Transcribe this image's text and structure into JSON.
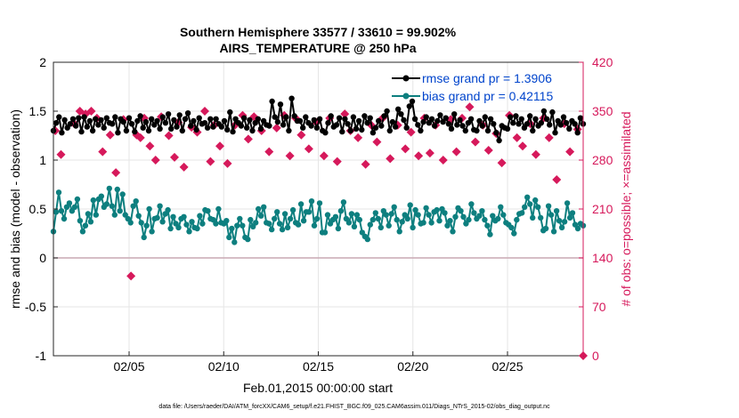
{
  "chart_data": {
    "type": "line",
    "title": [
      "Southern Hemisphere 33577 / 33610 = 99.902%",
      "AIRS_TEMPERATURE @ 250 hPa"
    ],
    "xlabel": "Feb.01,2015 00:00:00 start",
    "ylabel_left": "rmse and bias (model - observation)",
    "ylabel_right": "# of obs: o=possible; ×=assimilated",
    "footer": "data file: /Users/raeder/DAI/ATM_forcXX/CAM6_setup/f.e21.FHIST_BGC.f09_025.CAM6assim.011/Diags_NTrS_2015-02/obs_diag_output.nc",
    "xlim": [
      1,
      29
    ],
    "x_ticks": [
      5,
      10,
      15,
      20,
      25
    ],
    "x_tick_labels": [
      "02/05",
      "02/10",
      "02/15",
      "02/20",
      "02/25"
    ],
    "ylim_left": [
      -1,
      2
    ],
    "y_ticks_left": [
      "-1",
      "-0.5",
      "0",
      "0.5",
      "1",
      "1.5",
      "2"
    ],
    "ylim_right": [
      0,
      420
    ],
    "y_ticks_right": [
      "0",
      "70",
      "140",
      "210",
      "280",
      "350",
      "420"
    ],
    "grid": true,
    "legend_position": "top-right",
    "colors": {
      "rmse": "#000000",
      "bias": "#0d7f7f",
      "obs": "#d6195b",
      "zero_line": "#c9a9b3",
      "legend_text": "#0044cc"
    },
    "series": [
      {
        "name": "rmse grand pr = 1.3906",
        "axis": "left",
        "values": [
          1.3,
          1.38,
          1.44,
          1.28,
          1.41,
          1.33,
          1.37,
          1.42,
          1.35,
          1.43,
          1.29,
          1.44,
          1.34,
          1.4,
          1.3,
          1.42,
          1.36,
          1.41,
          1.33,
          1.43,
          1.38,
          1.37,
          1.44,
          1.28,
          1.42,
          1.39,
          1.3,
          1.43,
          1.37,
          1.29,
          1.4,
          1.45,
          1.33,
          1.39,
          1.3,
          1.42,
          1.36,
          1.4,
          1.32,
          1.44,
          1.38,
          1.47,
          1.32,
          1.41,
          1.34,
          1.46,
          1.3,
          1.42,
          1.48,
          1.35,
          1.4,
          1.31,
          1.43,
          1.37,
          1.38,
          1.33,
          1.42,
          1.34,
          1.42,
          1.37,
          1.34,
          1.4,
          1.31,
          1.49,
          1.29,
          1.42,
          1.38,
          1.35,
          1.43,
          1.33,
          1.41,
          1.3,
          1.38,
          1.42,
          1.32,
          1.4,
          1.36,
          1.35,
          1.6,
          1.44,
          1.39,
          1.57,
          1.36,
          1.44,
          1.3,
          1.63,
          1.45,
          1.4,
          1.4,
          1.33,
          1.44,
          1.38,
          1.35,
          1.41,
          1.33,
          1.42,
          1.3,
          1.28,
          1.38,
          1.45,
          1.34,
          1.36,
          1.43,
          1.29,
          1.42,
          1.37,
          1.3,
          1.44,
          1.32,
          1.4,
          1.31,
          1.45,
          1.38,
          1.43,
          1.28,
          1.33,
          1.4,
          1.35,
          1.45,
          1.5,
          1.3,
          1.39,
          1.34,
          1.52,
          1.47,
          1.41,
          1.33,
          1.55,
          1.6,
          1.42,
          1.36,
          1.3,
          1.39,
          1.44,
          1.38,
          1.42,
          1.35,
          1.4,
          1.46,
          1.39,
          1.43,
          1.37,
          1.32,
          1.47,
          1.36,
          1.41,
          1.35,
          1.3,
          1.38,
          1.42,
          1.31,
          1.3,
          1.4,
          1.35,
          1.44,
          1.3,
          1.42,
          1.37,
          1.28,
          1.2,
          1.35,
          1.33,
          1.32,
          1.44,
          1.38,
          1.45,
          1.37,
          1.42,
          1.33,
          1.37,
          1.45,
          1.3,
          1.42,
          1.35,
          1.38,
          1.5,
          1.42,
          1.36,
          1.49,
          1.28,
          1.4,
          1.36,
          1.44,
          1.38,
          1.32,
          1.4,
          1.37,
          1.28,
          1.43,
          1.37
        ]
      },
      {
        "name": "bias grand pr = 0.42115",
        "axis": "left",
        "values": [
          0.27,
          0.47,
          0.67,
          0.48,
          0.4,
          0.52,
          0.56,
          0.48,
          0.52,
          0.6,
          0.38,
          0.27,
          0.33,
          0.45,
          0.37,
          0.59,
          0.44,
          0.6,
          0.63,
          0.52,
          0.55,
          0.71,
          0.53,
          0.44,
          0.7,
          0.48,
          0.65,
          0.44,
          0.4,
          0.36,
          0.53,
          0.58,
          0.43,
          0.36,
          0.21,
          0.33,
          0.5,
          0.27,
          0.4,
          0.41,
          0.53,
          0.37,
          0.45,
          0.49,
          0.3,
          0.42,
          0.35,
          0.31,
          0.4,
          0.42,
          0.34,
          0.27,
          0.37,
          0.31,
          0.3,
          0.43,
          0.35,
          0.49,
          0.48,
          0.4,
          0.39,
          0.35,
          0.5,
          0.36,
          0.35,
          0.38,
          0.21,
          0.3,
          0.16,
          0.33,
          0.4,
          0.33,
          0.21,
          0.19,
          0.39,
          0.32,
          0.36,
          0.5,
          0.43,
          0.52,
          0.36,
          0.35,
          0.29,
          0.4,
          0.47,
          0.35,
          0.29,
          0.45,
          0.31,
          0.4,
          0.49,
          0.36,
          0.34,
          0.55,
          0.38,
          0.47,
          0.47,
          0.58,
          0.33,
          0.4,
          0.56,
          0.26,
          0.26,
          0.44,
          0.35,
          0.39,
          0.42,
          0.3,
          0.48,
          0.57,
          0.4,
          0.36,
          0.45,
          0.32,
          0.44,
          0.39,
          0.26,
          0.22,
          0.19,
          0.34,
          0.39,
          0.46,
          0.4,
          0.31,
          0.48,
          0.44,
          0.33,
          0.45,
          0.52,
          0.39,
          0.27,
          0.37,
          0.44,
          0.4,
          0.54,
          0.31,
          0.49,
          0.44,
          0.35,
          0.36,
          0.51,
          0.44,
          0.36,
          0.47,
          0.49,
          0.38,
          0.5,
          0.46,
          0.33,
          0.38,
          0.27,
          0.42,
          0.51,
          0.48,
          0.42,
          0.35,
          0.39,
          0.55,
          0.46,
          0.4,
          0.43,
          0.48,
          0.39,
          0.33,
          0.24,
          0.43,
          0.38,
          0.4,
          0.52,
          0.44,
          0.36,
          0.34,
          0.31,
          0.25,
          0.39,
          0.45,
          0.46,
          0.52,
          0.62,
          0.55,
          0.41,
          0.59,
          0.52,
          0.41,
          0.28,
          0.3,
          0.53,
          0.44,
          0.27,
          0.48,
          0.38,
          0.31,
          0.37,
          0.56,
          0.41,
          0.46,
          0.34,
          0.3,
          0.35,
          0.33
        ]
      },
      {
        "name": "# of obs assimilated",
        "axis": "right",
        "x": [
          1.1,
          1.4,
          2.1,
          2.4,
          2.7,
          3.0,
          3.3,
          3.6,
          4.0,
          4.3,
          4.7,
          5.1,
          5.4,
          5.6,
          5.8,
          6.1,
          6.4,
          6.7,
          7.1,
          7.4,
          7.6,
          7.9,
          8.3,
          8.6,
          9.0,
          9.3,
          9.5,
          9.8,
          10.2,
          10.6,
          11.0,
          11.3,
          11.6,
          12.0,
          12.4,
          12.8,
          13.2,
          13.5,
          13.8,
          14.1,
          14.5,
          14.9,
          15.3,
          15.6,
          16.0,
          16.4,
          16.7,
          17.1,
          17.5,
          17.8,
          18.1,
          18.4,
          18.8,
          19.2,
          19.6,
          19.9,
          20.3,
          20.6,
          20.9,
          21.2,
          21.6,
          22.0,
          22.3,
          22.6,
          23.0,
          23.3,
          23.7,
          24.0,
          24.4,
          24.7,
          25.1,
          25.5,
          25.8,
          26.2,
          26.5,
          26.9,
          27.2,
          27.6,
          28.0,
          28.3,
          28.7,
          29.0
        ],
        "values": [
          322,
          288,
          332,
          350,
          346,
          350,
          340,
          292,
          316,
          262,
          338,
          114,
          316,
          312,
          340,
          300,
          280,
          342,
          315,
          284,
          334,
          270,
          327,
          320,
          350,
          278,
          330,
          300,
          275,
          330,
          344,
          310,
          342,
          322,
          292,
          326,
          344,
          286,
          340,
          316,
          296,
          334,
          286,
          340,
          278,
          346,
          322,
          312,
          274,
          330,
          306,
          340,
          282,
          330,
          296,
          320,
          286,
          340,
          290,
          330,
          280,
          338,
          292,
          340,
          356,
          306,
          330,
          294,
          318,
          276,
          344,
          312,
          300,
          332,
          288,
          340,
          312,
          252,
          332,
          292,
          324,
          0
        ]
      }
    ]
  }
}
